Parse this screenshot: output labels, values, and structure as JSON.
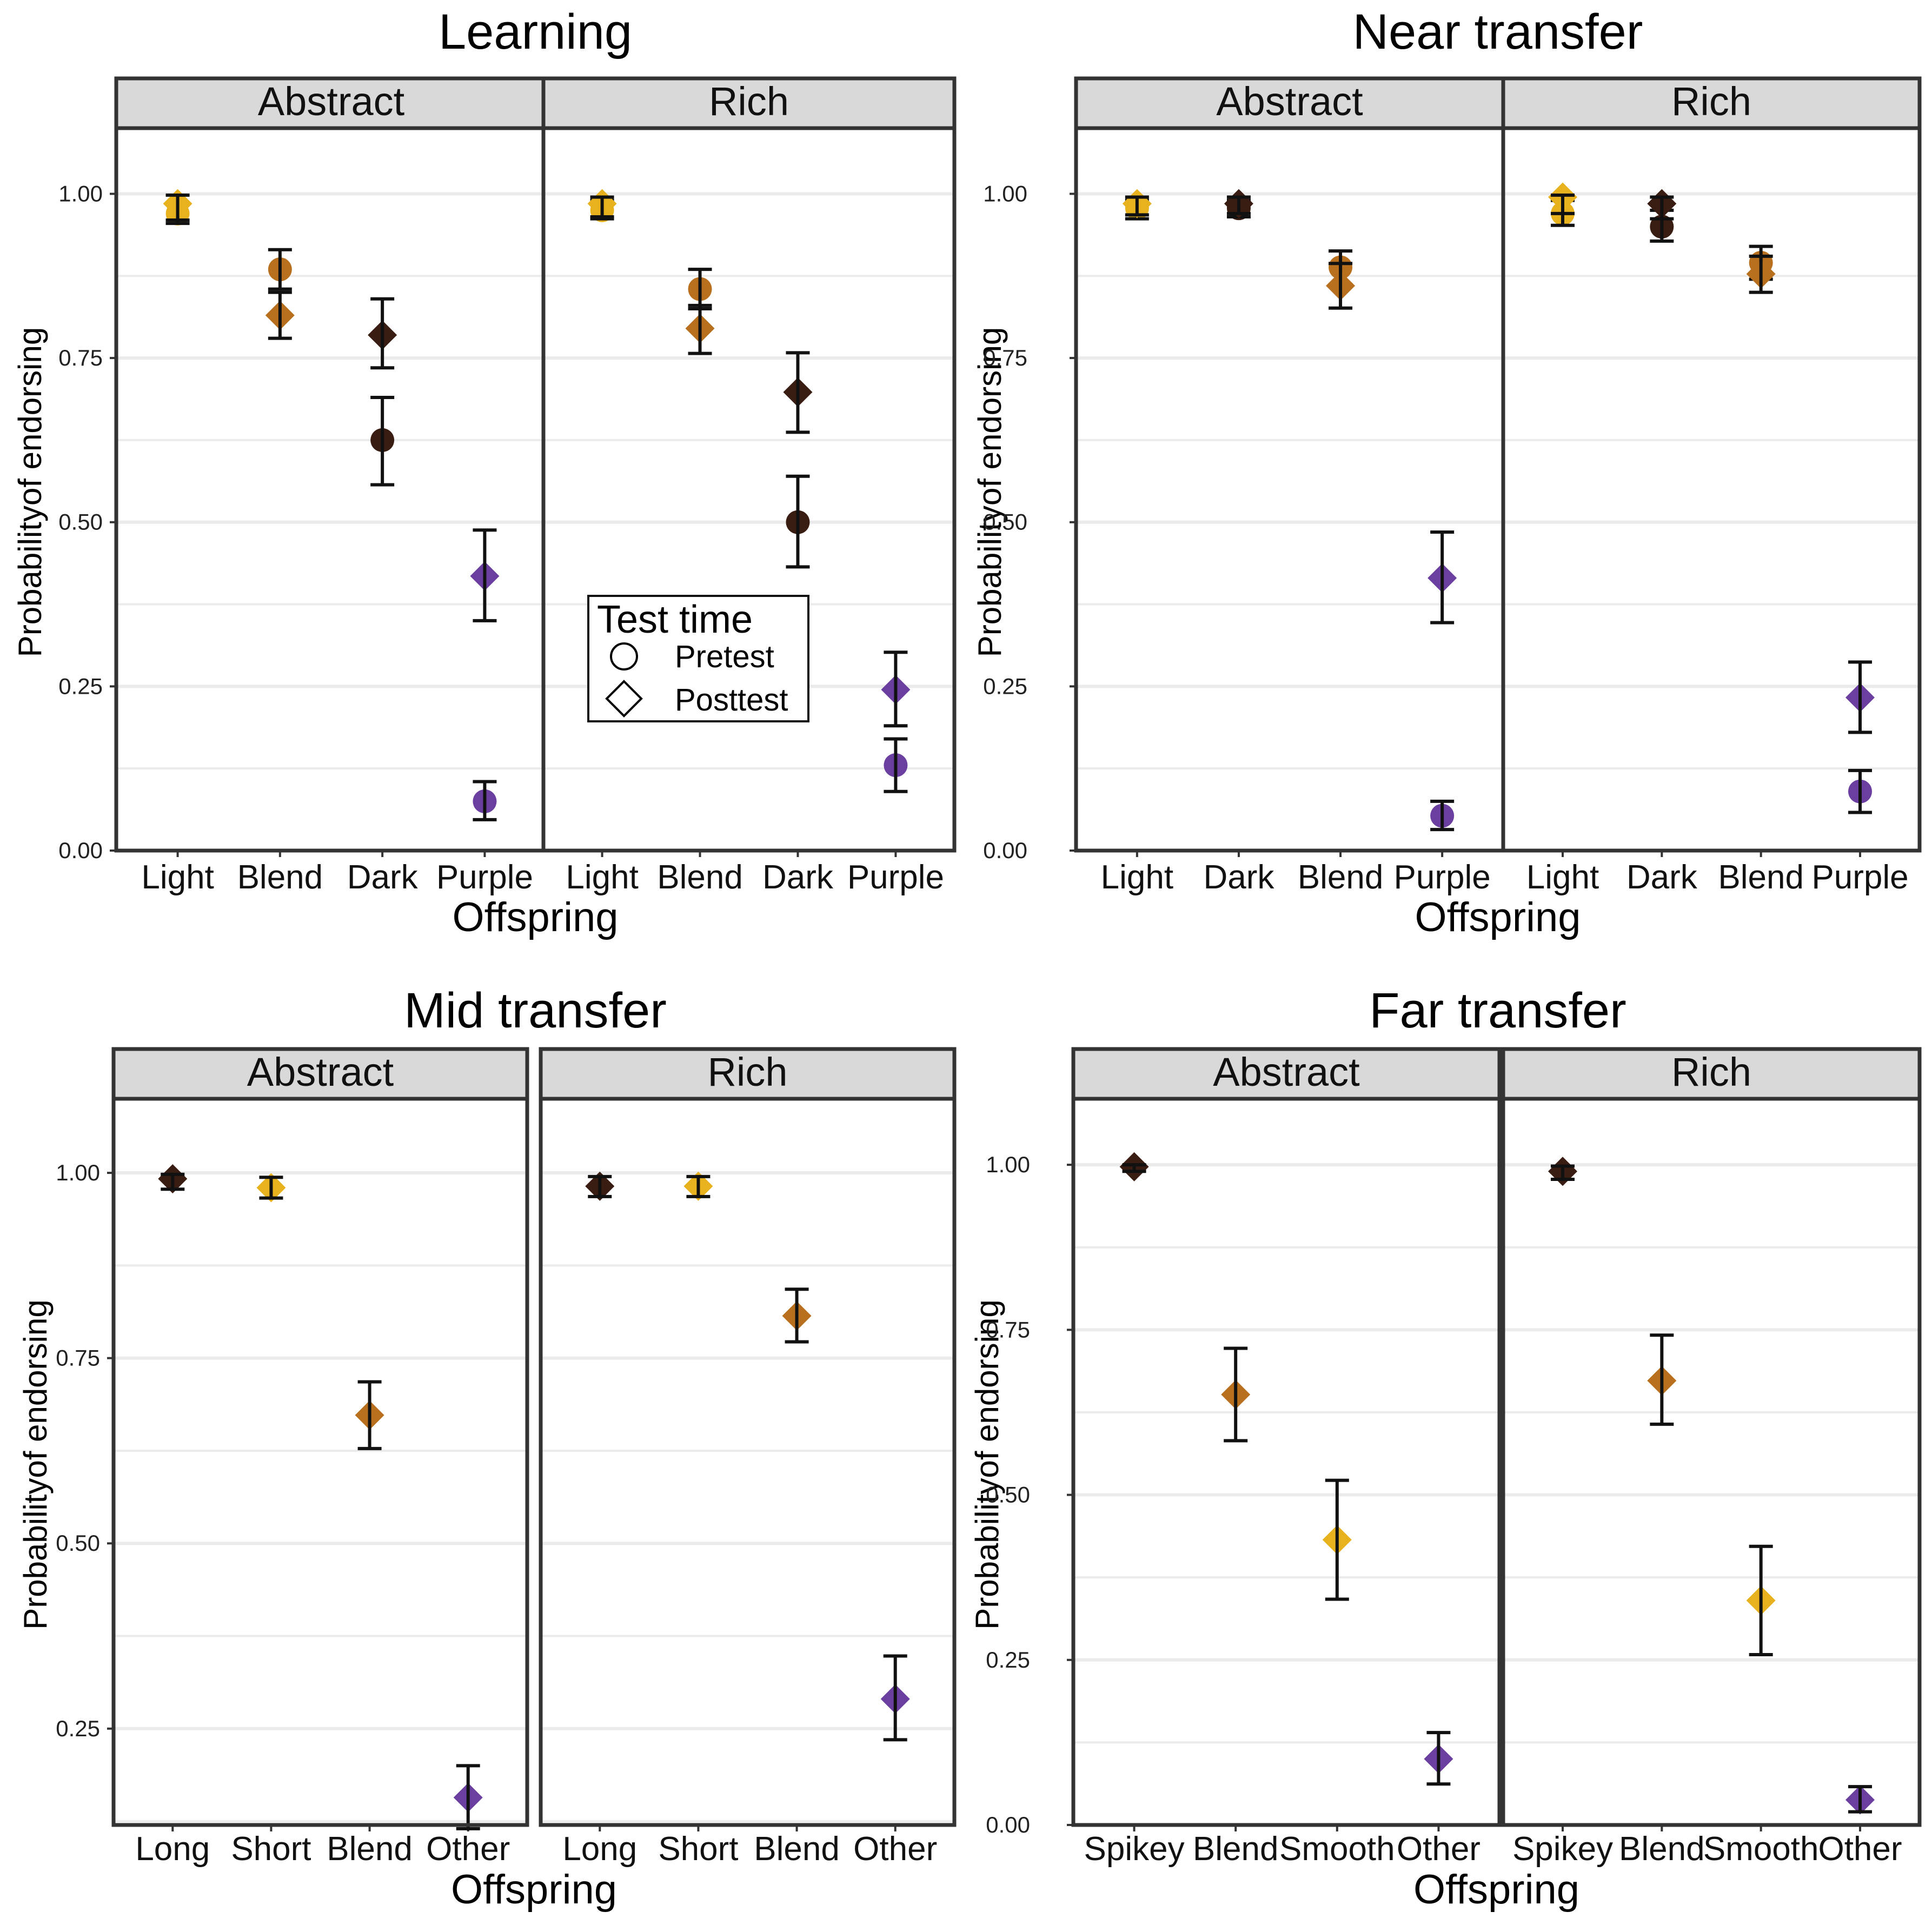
{
  "figure": {
    "y_axis_label": "Probabilityof endorsing",
    "x_axis_label": "Offspring",
    "legend": {
      "title": "Test time",
      "pretest": "Pretest",
      "posttest": "Posttest"
    }
  },
  "colors": {
    "yellow": "#e8b21f",
    "orange": "#b8701e",
    "dark": "#3a1d12",
    "purple": "#6b3fa0",
    "strip_fill": "#d9d9d9",
    "frame": "#333333",
    "grid": "#ebebeb"
  },
  "chart_data": [
    {
      "type": "scatter",
      "title": "Learning",
      "ylim": [
        0,
        1.1
      ],
      "yticks": [
        0,
        0.25,
        0.5,
        0.75,
        1.0
      ],
      "ytick_labels": [
        "0.00",
        "0.25",
        "0.50",
        "0.75",
        "1.00"
      ],
      "xlabel": "Offspring",
      "ylabel": "Probabilityof endorsing",
      "categories": [
        "Light",
        "Blend",
        "Dark",
        "Purple"
      ],
      "category_colors": [
        "yellow",
        "orange",
        "dark",
        "purple"
      ],
      "show_legend": true,
      "facets": [
        {
          "label": "Abstract",
          "pretest": [
            [
              0.97,
              0.955,
              0.985
            ],
            [
              0.885,
              0.855,
              0.915
            ],
            [
              0.625,
              0.557,
              0.69
            ],
            [
              0.075,
              0.047,
              0.105
            ]
          ],
          "posttest": [
            [
              0.985,
              0.96,
              0.998
            ],
            [
              0.815,
              0.78,
              0.85
            ],
            [
              0.785,
              0.735,
              0.84
            ],
            [
              0.418,
              0.35,
              0.488
            ]
          ]
        },
        {
          "label": "Rich",
          "pretest": [
            [
              0.975,
              0.962,
              0.99
            ],
            [
              0.855,
              0.825,
              0.885
            ],
            [
              0.5,
              0.432,
              0.57
            ],
            [
              0.13,
              0.09,
              0.17
            ]
          ],
          "posttest": [
            [
              0.985,
              0.965,
              0.995
            ],
            [
              0.795,
              0.757,
              0.83
            ],
            [
              0.698,
              0.637,
              0.758
            ],
            [
              0.245,
              0.19,
              0.302
            ]
          ]
        }
      ]
    },
    {
      "type": "scatter",
      "title": "Near transfer",
      "ylim": [
        0,
        1.1
      ],
      "yticks": [
        0,
        0.25,
        0.5,
        0.75,
        1.0
      ],
      "ytick_labels": [
        "0.00",
        "0.25",
        "0.50",
        "0.75",
        "1.00"
      ],
      "xlabel": "Offspring",
      "ylabel": "Probabilityof endorsing",
      "categories": [
        "Light",
        "Dark",
        "Blend",
        "Purple"
      ],
      "category_colors": [
        "yellow",
        "dark",
        "orange",
        "purple"
      ],
      "show_legend": false,
      "facets": [
        {
          "label": "Abstract",
          "pretest": [
            [
              0.978,
              0.962,
              0.99
            ],
            [
              0.978,
              0.965,
              0.99
            ],
            [
              0.888,
              0.862,
              0.913
            ],
            [
              0.053,
              0.032,
              0.075
            ]
          ],
          "posttest": [
            [
              0.985,
              0.968,
              0.995
            ],
            [
              0.985,
              0.97,
              0.995
            ],
            [
              0.86,
              0.826,
              0.894
            ],
            [
              0.415,
              0.347,
              0.485
            ]
          ]
        },
        {
          "label": "Rich",
          "pretest": [
            [
              0.97,
              0.952,
              0.99
            ],
            [
              0.95,
              0.928,
              0.975
            ],
            [
              0.895,
              0.87,
              0.92
            ],
            [
              0.09,
              0.058,
              0.122
            ]
          ],
          "posttest": [
            [
              0.995,
              0.97,
              0.998
            ],
            [
              0.985,
              0.962,
              0.995
            ],
            [
              0.878,
              0.85,
              0.905
            ],
            [
              0.233,
              0.18,
              0.287
            ]
          ]
        }
      ]
    },
    {
      "type": "scatter",
      "title": "Mid transfer",
      "ylim": [
        0.12,
        1.1
      ],
      "yticks": [
        0.25,
        0.5,
        0.75,
        1.0
      ],
      "ytick_labels": [
        "0.25",
        "0.50",
        "0.75",
        "1.00"
      ],
      "xlabel": "Offspring",
      "ylabel": "Probabilityof endorsing",
      "categories": [
        "Long",
        "Short",
        "Blend",
        "Other"
      ],
      "category_colors": [
        "dark",
        "yellow",
        "orange",
        "purple"
      ],
      "show_legend": false,
      "facets": [
        {
          "label": "Abstract",
          "pretest": [],
          "posttest": [
            [
              0.992,
              0.978,
              0.998
            ],
            [
              0.98,
              0.966,
              0.994
            ],
            [
              0.673,
              0.628,
              0.718
            ],
            [
              0.157,
              0.115,
              0.2
            ]
          ]
        },
        {
          "label": "Rich",
          "pretest": [],
          "posttest": [
            [
              0.982,
              0.968,
              0.995
            ],
            [
              0.982,
              0.968,
              0.995
            ],
            [
              0.807,
              0.772,
              0.843
            ],
            [
              0.29,
              0.235,
              0.348
            ]
          ]
        }
      ]
    },
    {
      "type": "scatter",
      "title": "Far transfer",
      "ylim": [
        0,
        1.1
      ],
      "yticks": [
        0,
        0.25,
        0.5,
        0.75,
        1.0
      ],
      "ytick_labels": [
        "0.00",
        "0.25",
        "0.50",
        "0.75",
        "1.00"
      ],
      "xlabel": "Offspring",
      "ylabel": "Probabilityof endorsing",
      "categories": [
        "Spikey",
        "Blend",
        "Smooth",
        "Other"
      ],
      "category_colors": [
        "dark",
        "orange",
        "yellow",
        "purple"
      ],
      "show_legend": false,
      "facets": [
        {
          "label": "Abstract",
          "pretest": [],
          "posttest": [
            [
              0.997,
              0.99,
              1.0
            ],
            [
              0.652,
              0.582,
              0.722
            ],
            [
              0.432,
              0.342,
              0.522
            ],
            [
              0.1,
              0.062,
              0.14
            ]
          ]
        },
        {
          "label": "Rich",
          "pretest": [],
          "posttest": [
            [
              0.99,
              0.978,
              0.998
            ],
            [
              0.673,
              0.607,
              0.742
            ],
            [
              0.34,
              0.258,
              0.422
            ],
            [
              0.038,
              0.02,
              0.058
            ]
          ]
        }
      ]
    }
  ]
}
